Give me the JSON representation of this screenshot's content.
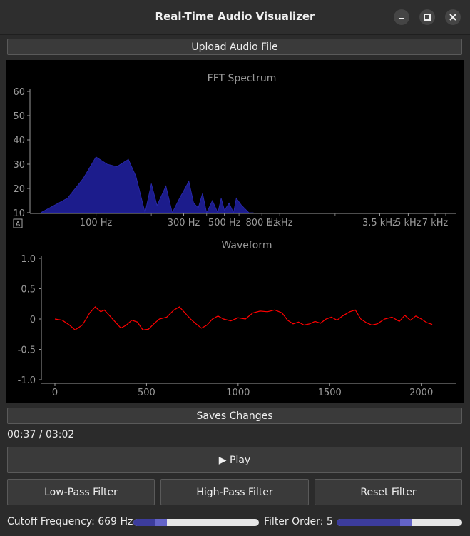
{
  "window": {
    "title": "Real-Time Audio Visualizer"
  },
  "buttons": {
    "upload": "Upload Audio File",
    "save": "Saves Changes",
    "play": "▶ Play",
    "low_pass": "Low-Pass Filter",
    "high_pass": "High-Pass Filter",
    "reset": "Reset Filter"
  },
  "playback": {
    "time": "00:37 / 03:02"
  },
  "controls": {
    "cutoff_label": "Cutoff Frequency: 669 Hz",
    "cutoff_value": 0.22,
    "order_label": "Filter Order: 5",
    "order_value": 0.55
  },
  "icons": {
    "minimize": "minimize-icon",
    "maximize": "maximize-icon",
    "close": "close-icon",
    "autorange": "auto-range-icon"
  },
  "chart_data": [
    {
      "type": "area",
      "title": "FFT Spectrum",
      "ylim": [
        10,
        60
      ],
      "yticks": [
        "60",
        "50",
        "40",
        "30",
        "20",
        "10"
      ],
      "xscale": "log",
      "xticks": [
        "100 Hz",
        "300 Hz",
        "500 Hz",
        "800 Hz",
        "1 kHz",
        "3.5 kHz",
        "5 kHz",
        "7 kHz"
      ],
      "color": "#1c1c8c",
      "x": [
        50,
        70,
        85,
        100,
        115,
        130,
        150,
        165,
        185,
        200,
        215,
        240,
        260,
        285,
        300,
        320,
        340,
        360,
        380,
        400,
        430,
        460,
        480,
        500,
        530,
        560,
        580,
        620,
        680,
        720
      ],
      "values": [
        10,
        16,
        24,
        33,
        30,
        29,
        32,
        25,
        10,
        22,
        13,
        21,
        10,
        16,
        19,
        23,
        14,
        12,
        18,
        9,
        15,
        10,
        16,
        11,
        14,
        9,
        16,
        13,
        10,
        10
      ]
    },
    {
      "type": "line",
      "title": "Waveform",
      "ylim": [
        -1.0,
        1.0
      ],
      "yticks": [
        "1.0",
        "0.5",
        "0",
        "-0.5",
        "-1.0"
      ],
      "xlim": [
        0,
        2048
      ],
      "xticks": [
        "0",
        "500",
        "1000",
        "1500",
        "2000"
      ],
      "color": "#ff0000",
      "x": [
        0,
        40,
        80,
        110,
        150,
        190,
        220,
        250,
        270,
        300,
        330,
        360,
        390,
        420,
        450,
        480,
        510,
        540,
        570,
        610,
        650,
        680,
        710,
        740,
        770,
        800,
        830,
        860,
        890,
        920,
        960,
        1000,
        1040,
        1080,
        1120,
        1160,
        1200,
        1240,
        1270,
        1300,
        1330,
        1360,
        1390,
        1420,
        1450,
        1480,
        1510,
        1540,
        1570,
        1610,
        1640,
        1670,
        1700,
        1730,
        1760,
        1800,
        1840,
        1880,
        1910,
        1940,
        1970,
        2000,
        2030,
        2060
      ],
      "values": [
        0.0,
        -0.02,
        -0.1,
        -0.18,
        -0.1,
        0.1,
        0.2,
        0.12,
        0.15,
        0.05,
        -0.05,
        -0.15,
        -0.1,
        -0.02,
        -0.05,
        -0.18,
        -0.17,
        -0.08,
        0.0,
        0.03,
        0.15,
        0.2,
        0.1,
        0.0,
        -0.08,
        -0.15,
        -0.1,
        0.0,
        0.05,
        0.0,
        -0.03,
        0.02,
        0.0,
        0.1,
        0.13,
        0.12,
        0.15,
        0.1,
        -0.02,
        -0.08,
        -0.05,
        -0.1,
        -0.08,
        -0.04,
        -0.07,
        0.0,
        0.03,
        -0.02,
        0.05,
        0.12,
        0.15,
        0.0,
        -0.06,
        -0.1,
        -0.08,
        0.0,
        0.03,
        -0.04,
        0.06,
        -0.02,
        0.05,
        0.0,
        -0.06,
        -0.09
      ]
    }
  ]
}
